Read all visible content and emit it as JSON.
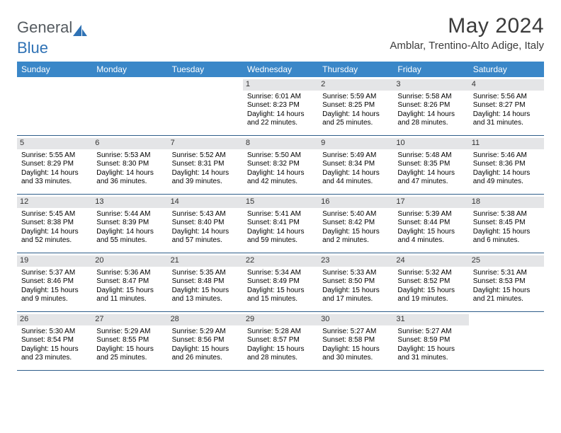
{
  "logo": {
    "text_a": "General",
    "text_b": "Blue"
  },
  "title": "May 2024",
  "location": "Amblar, Trentino-Alto Adige, Italy",
  "day_names": [
    "Sunday",
    "Monday",
    "Tuesday",
    "Wednesday",
    "Thursday",
    "Friday",
    "Saturday"
  ],
  "colors": {
    "header_bg": "#3a87c8",
    "daynum_bg": "#e4e5e7",
    "rule": "#2e5d8a",
    "logo_gray": "#555b60",
    "logo_blue": "#2f72b5"
  },
  "weeks": [
    [
      {
        "n": "",
        "sr": "",
        "ss": "",
        "dl": ""
      },
      {
        "n": "",
        "sr": "",
        "ss": "",
        "dl": ""
      },
      {
        "n": "",
        "sr": "",
        "ss": "",
        "dl": ""
      },
      {
        "n": "1",
        "sr": "Sunrise: 6:01 AM",
        "ss": "Sunset: 8:23 PM",
        "dl": "Daylight: 14 hours and 22 minutes."
      },
      {
        "n": "2",
        "sr": "Sunrise: 5:59 AM",
        "ss": "Sunset: 8:25 PM",
        "dl": "Daylight: 14 hours and 25 minutes."
      },
      {
        "n": "3",
        "sr": "Sunrise: 5:58 AM",
        "ss": "Sunset: 8:26 PM",
        "dl": "Daylight: 14 hours and 28 minutes."
      },
      {
        "n": "4",
        "sr": "Sunrise: 5:56 AM",
        "ss": "Sunset: 8:27 PM",
        "dl": "Daylight: 14 hours and 31 minutes."
      }
    ],
    [
      {
        "n": "5",
        "sr": "Sunrise: 5:55 AM",
        "ss": "Sunset: 8:29 PM",
        "dl": "Daylight: 14 hours and 33 minutes."
      },
      {
        "n": "6",
        "sr": "Sunrise: 5:53 AM",
        "ss": "Sunset: 8:30 PM",
        "dl": "Daylight: 14 hours and 36 minutes."
      },
      {
        "n": "7",
        "sr": "Sunrise: 5:52 AM",
        "ss": "Sunset: 8:31 PM",
        "dl": "Daylight: 14 hours and 39 minutes."
      },
      {
        "n": "8",
        "sr": "Sunrise: 5:50 AM",
        "ss": "Sunset: 8:32 PM",
        "dl": "Daylight: 14 hours and 42 minutes."
      },
      {
        "n": "9",
        "sr": "Sunrise: 5:49 AM",
        "ss": "Sunset: 8:34 PM",
        "dl": "Daylight: 14 hours and 44 minutes."
      },
      {
        "n": "10",
        "sr": "Sunrise: 5:48 AM",
        "ss": "Sunset: 8:35 PM",
        "dl": "Daylight: 14 hours and 47 minutes."
      },
      {
        "n": "11",
        "sr": "Sunrise: 5:46 AM",
        "ss": "Sunset: 8:36 PM",
        "dl": "Daylight: 14 hours and 49 minutes."
      }
    ],
    [
      {
        "n": "12",
        "sr": "Sunrise: 5:45 AM",
        "ss": "Sunset: 8:38 PM",
        "dl": "Daylight: 14 hours and 52 minutes."
      },
      {
        "n": "13",
        "sr": "Sunrise: 5:44 AM",
        "ss": "Sunset: 8:39 PM",
        "dl": "Daylight: 14 hours and 55 minutes."
      },
      {
        "n": "14",
        "sr": "Sunrise: 5:43 AM",
        "ss": "Sunset: 8:40 PM",
        "dl": "Daylight: 14 hours and 57 minutes."
      },
      {
        "n": "15",
        "sr": "Sunrise: 5:41 AM",
        "ss": "Sunset: 8:41 PM",
        "dl": "Daylight: 14 hours and 59 minutes."
      },
      {
        "n": "16",
        "sr": "Sunrise: 5:40 AM",
        "ss": "Sunset: 8:42 PM",
        "dl": "Daylight: 15 hours and 2 minutes."
      },
      {
        "n": "17",
        "sr": "Sunrise: 5:39 AM",
        "ss": "Sunset: 8:44 PM",
        "dl": "Daylight: 15 hours and 4 minutes."
      },
      {
        "n": "18",
        "sr": "Sunrise: 5:38 AM",
        "ss": "Sunset: 8:45 PM",
        "dl": "Daylight: 15 hours and 6 minutes."
      }
    ],
    [
      {
        "n": "19",
        "sr": "Sunrise: 5:37 AM",
        "ss": "Sunset: 8:46 PM",
        "dl": "Daylight: 15 hours and 9 minutes."
      },
      {
        "n": "20",
        "sr": "Sunrise: 5:36 AM",
        "ss": "Sunset: 8:47 PM",
        "dl": "Daylight: 15 hours and 11 minutes."
      },
      {
        "n": "21",
        "sr": "Sunrise: 5:35 AM",
        "ss": "Sunset: 8:48 PM",
        "dl": "Daylight: 15 hours and 13 minutes."
      },
      {
        "n": "22",
        "sr": "Sunrise: 5:34 AM",
        "ss": "Sunset: 8:49 PM",
        "dl": "Daylight: 15 hours and 15 minutes."
      },
      {
        "n": "23",
        "sr": "Sunrise: 5:33 AM",
        "ss": "Sunset: 8:50 PM",
        "dl": "Daylight: 15 hours and 17 minutes."
      },
      {
        "n": "24",
        "sr": "Sunrise: 5:32 AM",
        "ss": "Sunset: 8:52 PM",
        "dl": "Daylight: 15 hours and 19 minutes."
      },
      {
        "n": "25",
        "sr": "Sunrise: 5:31 AM",
        "ss": "Sunset: 8:53 PM",
        "dl": "Daylight: 15 hours and 21 minutes."
      }
    ],
    [
      {
        "n": "26",
        "sr": "Sunrise: 5:30 AM",
        "ss": "Sunset: 8:54 PM",
        "dl": "Daylight: 15 hours and 23 minutes."
      },
      {
        "n": "27",
        "sr": "Sunrise: 5:29 AM",
        "ss": "Sunset: 8:55 PM",
        "dl": "Daylight: 15 hours and 25 minutes."
      },
      {
        "n": "28",
        "sr": "Sunrise: 5:29 AM",
        "ss": "Sunset: 8:56 PM",
        "dl": "Daylight: 15 hours and 26 minutes."
      },
      {
        "n": "29",
        "sr": "Sunrise: 5:28 AM",
        "ss": "Sunset: 8:57 PM",
        "dl": "Daylight: 15 hours and 28 minutes."
      },
      {
        "n": "30",
        "sr": "Sunrise: 5:27 AM",
        "ss": "Sunset: 8:58 PM",
        "dl": "Daylight: 15 hours and 30 minutes."
      },
      {
        "n": "31",
        "sr": "Sunrise: 5:27 AM",
        "ss": "Sunset: 8:59 PM",
        "dl": "Daylight: 15 hours and 31 minutes."
      },
      {
        "n": "",
        "sr": "",
        "ss": "",
        "dl": ""
      }
    ]
  ]
}
